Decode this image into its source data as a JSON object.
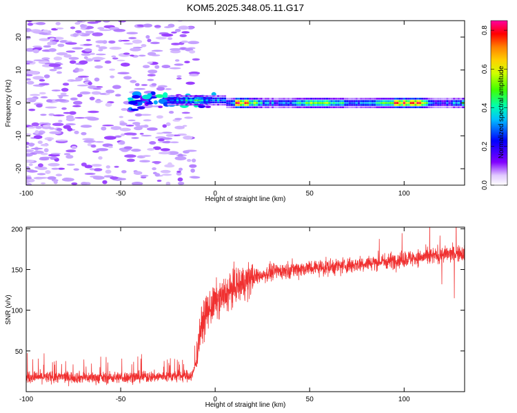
{
  "figure": {
    "title": "KOM5.2025.348.05.11.G17"
  },
  "chart_data": [
    {
      "type": "heatmap",
      "xlabel": "Height of straight line (km)",
      "ylabel": "Frequency (Hz)",
      "xlim": [
        -100,
        132
      ],
      "ylim": [
        -25,
        25
      ],
      "xticks": [
        -100,
        -50,
        0,
        50,
        100
      ],
      "yticks": [
        -20,
        -10,
        0,
        10,
        20
      ],
      "colorbar": {
        "label": "Normalized spectral amplitude",
        "range": [
          0,
          0.85
        ],
        "ticks": [
          0.0,
          0.2,
          0.4,
          0.6,
          0.8
        ],
        "tick_labels": [
          "0.0",
          "0.2",
          "0.4",
          "0.6",
          "0.8"
        ],
        "colormap": "rainbow (violet to magenta)"
      },
      "features": [
        {
          "kind": "noise",
          "x_range": [
            -100,
            -10
          ],
          "freq_range": [
            -25,
            25
          ],
          "amplitude": 0.1
        },
        {
          "kind": "signal_band",
          "x_range": [
            -45,
            132
          ],
          "center_freq_hz": 0,
          "width_hz": 2.5,
          "amplitude_range": [
            0.2,
            0.85
          ]
        }
      ]
    },
    {
      "type": "line",
      "xlabel": "Height of straight line (km)",
      "ylabel": "SNR (v/v)",
      "xlim": [
        -100,
        132
      ],
      "ylim": [
        0,
        202
      ],
      "xticks": [
        -100,
        -50,
        0,
        50,
        100
      ],
      "yticks": [
        50,
        100,
        150,
        200
      ],
      "series": [
        {
          "color": "#f03030",
          "x": [
            -100,
            -80,
            -60,
            -40,
            -20,
            -12,
            -10,
            -8,
            -5,
            0,
            5,
            10,
            20,
            30,
            40,
            50,
            60,
            70,
            80,
            90,
            100,
            110,
            120,
            132
          ],
          "y": [
            18,
            18,
            17,
            18,
            19,
            20,
            38,
            75,
            95,
            110,
            118,
            128,
            140,
            147,
            150,
            152,
            153,
            155,
            158,
            160,
            163,
            165,
            168,
            170
          ]
        }
      ]
    }
  ]
}
